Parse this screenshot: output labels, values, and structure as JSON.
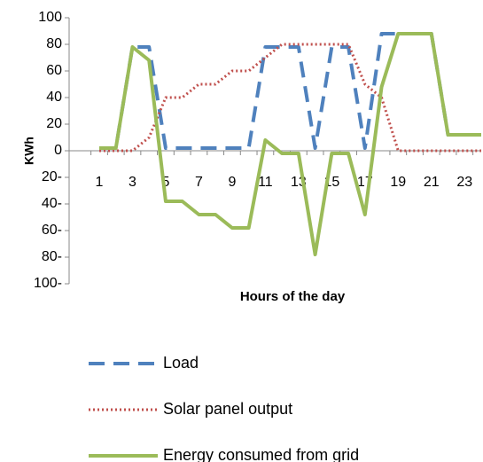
{
  "chart_data": {
    "type": "line",
    "y_label": "KWh",
    "x_label": "Hours of the day",
    "categories": [
      "1",
      null,
      "3",
      null,
      "5",
      null,
      "7",
      null,
      "9",
      null,
      "11",
      null,
      "13",
      null,
      "15",
      null,
      "17",
      null,
      "19",
      null,
      "21",
      null,
      "23",
      null
    ],
    "ylim": [
      -100,
      100
    ],
    "yticks": [
      {
        "value": -100,
        "label": "100-"
      },
      {
        "value": -80,
        "label": "80-"
      },
      {
        "value": -60,
        "label": "60-"
      },
      {
        "value": -40,
        "label": "40-"
      },
      {
        "value": -20,
        "label": "20-"
      },
      0,
      20,
      40,
      60,
      80,
      100
    ],
    "series": [
      {
        "name": "Load",
        "color": "#4f81bd",
        "style": "dashed",
        "values": [
          2,
          2,
          78,
          78,
          2,
          2,
          2,
          2,
          2,
          2,
          78,
          78,
          78,
          2,
          78,
          78,
          2,
          88,
          88,
          88,
          88,
          12,
          12,
          12
        ]
      },
      {
        "name": "Solar panel output",
        "color": "#c0504d",
        "style": "dotted",
        "values": [
          0,
          0,
          0,
          10,
          40,
          40,
          50,
          50,
          60,
          60,
          70,
          80,
          80,
          80,
          80,
          80,
          50,
          40,
          0,
          0,
          0,
          0,
          0,
          0
        ]
      },
      {
        "name": "Energy consumed from grid",
        "color": "#9bbb59",
        "style": "solid",
        "values": [
          2,
          2,
          78,
          68,
          -38,
          -38,
          -48,
          -48,
          -58,
          -58,
          8,
          -2,
          -2,
          -78,
          -2,
          -2,
          -48,
          48,
          88,
          88,
          88,
          12,
          12,
          12
        ]
      }
    ]
  }
}
